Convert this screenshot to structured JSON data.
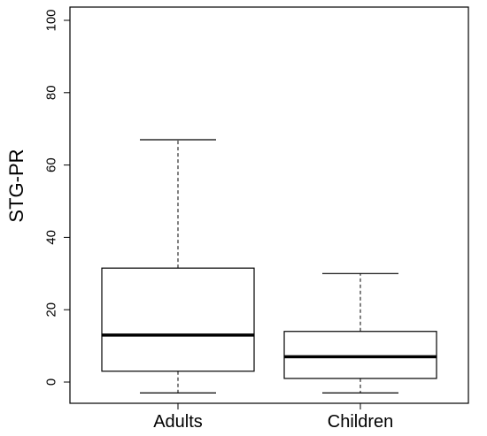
{
  "chart_data": {
    "type": "boxplot",
    "title": "",
    "xlabel": "",
    "ylabel": "STG-PR",
    "ylim": [
      0,
      100
    ],
    "yticks": [
      0,
      20,
      40,
      60,
      80,
      100
    ],
    "categories": [
      "Adults",
      "Children"
    ],
    "boxes": [
      {
        "category": "Adults",
        "whisker_low": -3,
        "q1": 3,
        "median": 13,
        "q3": 31.5,
        "whisker_high": 67
      },
      {
        "category": "Children",
        "whisker_low": -3,
        "q1": 1,
        "median": 7,
        "q3": 14,
        "whisker_high": 30
      }
    ],
    "grid": false,
    "colors": {
      "line": "#000000",
      "box_fill": "#ffffff",
      "background": "#ffffff"
    }
  }
}
